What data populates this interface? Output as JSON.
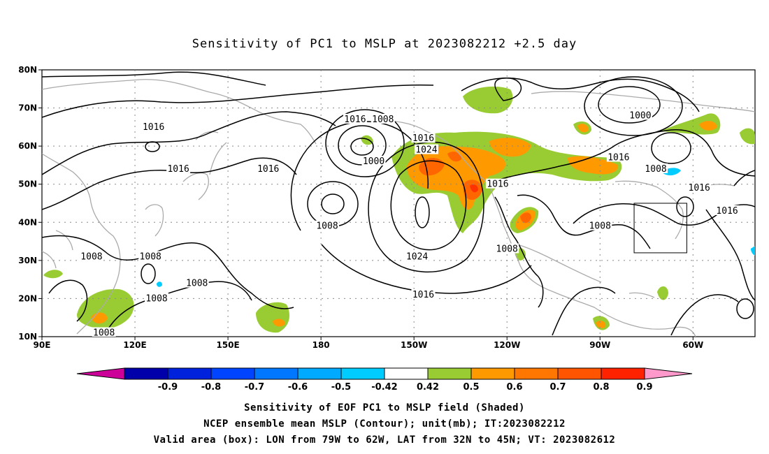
{
  "title": "Sensitivity of PC1 to MSLP at 2023082212 +2.5 day",
  "map": {
    "lat_ticks": [
      "80N",
      "70N",
      "60N",
      "50N",
      "40N",
      "30N",
      "20N",
      "10N"
    ],
    "lon_ticks": [
      "90E",
      "120E",
      "150E",
      "180",
      "150W",
      "120W",
      "90W",
      "60W"
    ],
    "lon_range": [
      90,
      320
    ],
    "lat_range": [
      10,
      80
    ],
    "grid": "dotted",
    "colors": {
      "coast": "#aaaaaa",
      "contour": "#000000",
      "green": "#99cc33",
      "orange": "#ff9900",
      "dark_orange": "#ff6600",
      "red_orange": "#ff3300",
      "cyan": "#00ccff"
    },
    "contour_labels": [
      {
        "text": "1016",
        "lon": 126,
        "lat": 65
      },
      {
        "text": "1016",
        "lon": 134,
        "lat": 54
      },
      {
        "text": "1016",
        "lon": 163,
        "lat": 54
      },
      {
        "text": "1016",
        "lon": 191,
        "lat": 67
      },
      {
        "text": "1008",
        "lon": 200,
        "lat": 67
      },
      {
        "text": "1000",
        "lon": 197,
        "lat": 56
      },
      {
        "text": "1016",
        "lon": 213,
        "lat": 62
      },
      {
        "text": "1024",
        "lon": 214,
        "lat": 59
      },
      {
        "text": "1008",
        "lon": 182,
        "lat": 39
      },
      {
        "text": "1024",
        "lon": 211,
        "lat": 31
      },
      {
        "text": "1016",
        "lon": 213,
        "lat": 21
      },
      {
        "text": "1016",
        "lon": 237,
        "lat": 50
      },
      {
        "text": "1008",
        "lon": 240,
        "lat": 33
      },
      {
        "text": "1016",
        "lon": 276,
        "lat": 57
      },
      {
        "text": "1000",
        "lon": 283,
        "lat": 68
      },
      {
        "text": "1008",
        "lon": 288,
        "lat": 54
      },
      {
        "text": "1016",
        "lon": 302,
        "lat": 49
      },
      {
        "text": "1016",
        "lon": 311,
        "lat": 43
      },
      {
        "text": "1008",
        "lon": 270,
        "lat": 39
      },
      {
        "text": "1008",
        "lon": 106,
        "lat": 31
      },
      {
        "text": "1008",
        "lon": 125,
        "lat": 31
      },
      {
        "text": "1008",
        "lon": 140,
        "lat": 24
      },
      {
        "text": "1008",
        "lon": 127,
        "lat": 20
      },
      {
        "text": "1008",
        "lon": 110,
        "lat": 11
      }
    ],
    "box": {
      "lon_from": 281,
      "lon_to": 298,
      "lat_from": 32,
      "lat_to": 45
    }
  },
  "colorbar": {
    "labels": [
      "-0.9",
      "-0.8",
      "-0.7",
      "-0.6",
      "-0.5",
      "-0.42",
      "0.42",
      "0.5",
      "0.6",
      "0.7",
      "0.8",
      "0.9"
    ],
    "colors": [
      "#cc0099",
      "#0000aa",
      "#0022dd",
      "#0044ff",
      "#0077ff",
      "#00aaff",
      "#00ccff",
      "#ffffff",
      "#99cc33",
      "#ff9900",
      "#ff7700",
      "#ff5500",
      "#ff2200",
      "#ff99cc"
    ]
  },
  "footer": {
    "line1": "Sensitivity of EOF PC1 to MSLP field (Shaded)",
    "line2": "NCEP ensemble mean MSLP (Contour); unit(mb); IT:2023082212",
    "line3": "Valid area (box): LON from 79W to 62W, LAT from 32N to 45N; VT: 2023082612"
  }
}
